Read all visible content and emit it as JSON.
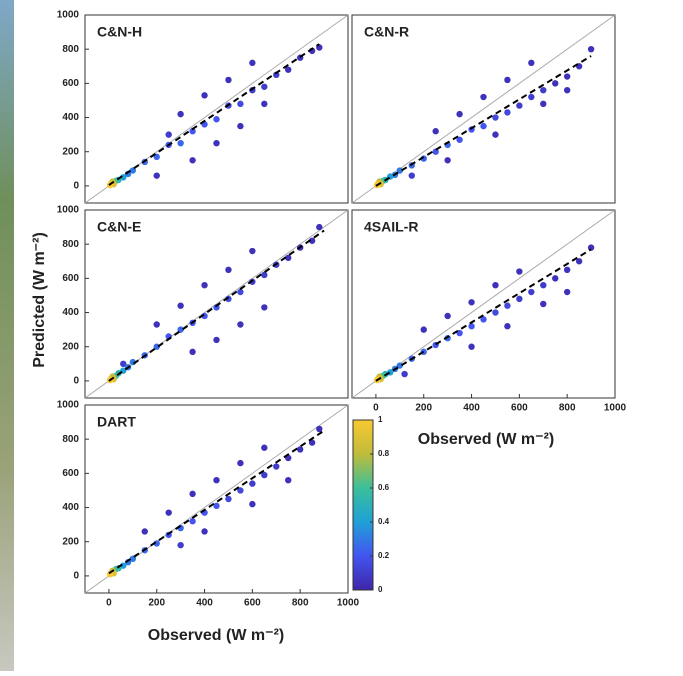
{
  "axis_labels": {
    "x": "Observed (W m⁻²)",
    "y": "Predicted (W m⁻²)"
  },
  "colorbar": {
    "lim": [
      0,
      1
    ],
    "ticks": [
      0,
      0.2,
      0.4,
      0.6,
      0.8,
      1
    ],
    "colors": [
      "#3e26a8",
      "#4354ef",
      "#1fa0d7",
      "#3bbf9a",
      "#c0bc3b",
      "#f9c832"
    ]
  },
  "chart_data": [
    {
      "type": "scatter",
      "title": "C&N-H",
      "xlim": [
        -100,
        1000
      ],
      "ylim": [
        -100,
        1000
      ],
      "yticks": [
        0,
        200,
        400,
        600,
        800,
        1000
      ],
      "x": [
        5,
        10,
        15,
        20,
        30,
        40,
        60,
        80,
        100,
        150,
        200,
        250,
        300,
        350,
        400,
        450,
        500,
        550,
        600,
        650,
        700,
        750,
        800,
        850,
        880,
        300,
        400,
        500,
        600,
        200,
        450,
        350,
        550,
        650,
        250
      ],
      "y": [
        5,
        15,
        25,
        10,
        30,
        35,
        50,
        70,
        90,
        140,
        170,
        240,
        250,
        320,
        360,
        390,
        470,
        480,
        560,
        580,
        650,
        680,
        750,
        790,
        810,
        420,
        530,
        620,
        720,
        60,
        250,
        150,
        350,
        480,
        300
      ],
      "density": [
        1,
        0.9,
        0.8,
        0.9,
        0.6,
        0.5,
        0.4,
        0.3,
        0.3,
        0.25,
        0.25,
        0.2,
        0.25,
        0.2,
        0.2,
        0.2,
        0.15,
        0.15,
        0.1,
        0.1,
        0.1,
        0.05,
        0.05,
        0.05,
        0.05,
        0.05,
        0.05,
        0.05,
        0.05,
        0.05,
        0.05,
        0.05,
        0.05,
        0.05,
        0.1
      ],
      "fit": {
        "x": [
          0,
          880
        ],
        "y": [
          5,
          830
        ]
      }
    },
    {
      "type": "scatter",
      "title": "C&N-R",
      "xlim": [
        -100,
        1000
      ],
      "ylim": [
        -100,
        1000
      ],
      "x": [
        5,
        10,
        15,
        20,
        30,
        40,
        60,
        80,
        100,
        150,
        200,
        250,
        300,
        350,
        400,
        450,
        500,
        550,
        600,
        650,
        700,
        750,
        800,
        850,
        900,
        250,
        350,
        450,
        550,
        650,
        300,
        500,
        700,
        800,
        150
      ],
      "y": [
        5,
        15,
        25,
        10,
        30,
        35,
        55,
        65,
        90,
        120,
        160,
        200,
        240,
        270,
        330,
        350,
        400,
        430,
        470,
        520,
        560,
        600,
        640,
        700,
        800,
        320,
        420,
        520,
        620,
        720,
        150,
        300,
        480,
        560,
        60
      ],
      "density": [
        1,
        0.9,
        0.8,
        0.9,
        0.6,
        0.5,
        0.4,
        0.3,
        0.3,
        0.25,
        0.25,
        0.2,
        0.25,
        0.2,
        0.2,
        0.2,
        0.15,
        0.15,
        0.1,
        0.1,
        0.1,
        0.05,
        0.05,
        0.05,
        0.05,
        0.05,
        0.05,
        0.05,
        0.05,
        0.05,
        0.05,
        0.05,
        0.05,
        0.05,
        0.1
      ],
      "fit": {
        "x": [
          0,
          900
        ],
        "y": [
          0,
          760
        ]
      }
    },
    {
      "type": "scatter",
      "title": "C&N-E",
      "xlim": [
        -100,
        1000
      ],
      "ylim": [
        -100,
        1000
      ],
      "yticks": [
        0,
        200,
        400,
        600,
        800,
        1000
      ],
      "x": [
        5,
        10,
        15,
        20,
        30,
        40,
        60,
        80,
        100,
        150,
        200,
        250,
        300,
        350,
        400,
        450,
        500,
        550,
        600,
        650,
        700,
        750,
        800,
        850,
        880,
        200,
        300,
        400,
        500,
        600,
        350,
        450,
        550,
        650,
        60
      ],
      "y": [
        5,
        15,
        25,
        10,
        30,
        45,
        60,
        80,
        110,
        150,
        200,
        260,
        300,
        340,
        380,
        430,
        480,
        520,
        580,
        620,
        680,
        720,
        780,
        820,
        900,
        330,
        440,
        560,
        650,
        760,
        170,
        240,
        330,
        430,
        100
      ],
      "density": [
        1,
        0.9,
        0.8,
        0.9,
        0.6,
        0.5,
        0.4,
        0.3,
        0.3,
        0.25,
        0.25,
        0.2,
        0.25,
        0.2,
        0.2,
        0.2,
        0.15,
        0.15,
        0.1,
        0.1,
        0.1,
        0.05,
        0.05,
        0.05,
        0.05,
        0.05,
        0.05,
        0.05,
        0.05,
        0.05,
        0.05,
        0.05,
        0.05,
        0.05,
        0.1
      ],
      "fit": {
        "x": [
          0,
          900
        ],
        "y": [
          0,
          880
        ]
      }
    },
    {
      "type": "scatter",
      "title": "4SAIL-R",
      "xlim": [
        -100,
        1000
      ],
      "ylim": [
        -100,
        1000
      ],
      "xticks": [
        0,
        200,
        400,
        600,
        800,
        1000
      ],
      "x": [
        5,
        10,
        15,
        20,
        30,
        40,
        60,
        80,
        100,
        150,
        200,
        250,
        300,
        350,
        400,
        450,
        500,
        550,
        600,
        650,
        700,
        750,
        800,
        850,
        900,
        200,
        300,
        400,
        500,
        600,
        400,
        550,
        700,
        800,
        120
      ],
      "y": [
        5,
        15,
        25,
        10,
        30,
        40,
        50,
        70,
        90,
        130,
        170,
        210,
        250,
        280,
        320,
        360,
        400,
        440,
        480,
        520,
        560,
        600,
        650,
        700,
        780,
        300,
        380,
        460,
        560,
        640,
        200,
        320,
        450,
        520,
        40
      ],
      "density": [
        1,
        0.9,
        0.8,
        0.9,
        0.6,
        0.5,
        0.4,
        0.3,
        0.3,
        0.25,
        0.25,
        0.2,
        0.25,
        0.2,
        0.2,
        0.2,
        0.15,
        0.15,
        0.1,
        0.1,
        0.1,
        0.05,
        0.05,
        0.05,
        0.05,
        0.05,
        0.05,
        0.05,
        0.05,
        0.05,
        0.05,
        0.05,
        0.05,
        0.05,
        0.1
      ],
      "fit": {
        "x": [
          0,
          900
        ],
        "y": [
          0,
          770
        ]
      }
    },
    {
      "type": "scatter",
      "title": "DART",
      "xlim": [
        -100,
        1000
      ],
      "ylim": [
        -100,
        1000
      ],
      "xticks": [
        0,
        200,
        400,
        600,
        800,
        1000
      ],
      "yticks": [
        0,
        200,
        400,
        600,
        800,
        1000
      ],
      "x": [
        5,
        10,
        15,
        20,
        30,
        40,
        60,
        80,
        100,
        150,
        200,
        250,
        300,
        350,
        400,
        450,
        500,
        550,
        600,
        650,
        700,
        750,
        800,
        850,
        880,
        150,
        250,
        350,
        450,
        550,
        650,
        400,
        600,
        750,
        300
      ],
      "y": [
        10,
        20,
        30,
        15,
        40,
        45,
        60,
        80,
        100,
        150,
        190,
        240,
        280,
        320,
        370,
        410,
        450,
        500,
        540,
        590,
        640,
        690,
        740,
        780,
        860,
        260,
        370,
        480,
        560,
        660,
        750,
        260,
        420,
        560,
        180
      ],
      "density": [
        1,
        0.9,
        0.8,
        0.9,
        0.6,
        0.5,
        0.4,
        0.3,
        0.3,
        0.25,
        0.25,
        0.2,
        0.25,
        0.2,
        0.2,
        0.2,
        0.15,
        0.15,
        0.1,
        0.1,
        0.1,
        0.05,
        0.05,
        0.05,
        0.05,
        0.05,
        0.05,
        0.05,
        0.05,
        0.05,
        0.05,
        0.05,
        0.05,
        0.05,
        0.1
      ],
      "fit": {
        "x": [
          0,
          900
        ],
        "y": [
          15,
          850
        ]
      }
    }
  ]
}
